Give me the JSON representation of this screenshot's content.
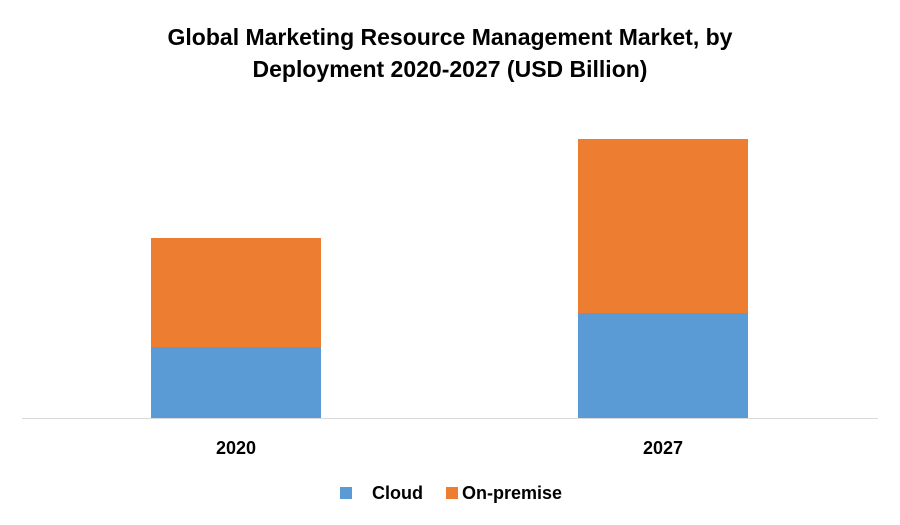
{
  "chart_data": {
    "type": "bar",
    "stacked": true,
    "title_lines": [
      "Global Marketing Resource Management Market, by",
      "Deployment 2020-2027 (USD Billion)"
    ],
    "categories": [
      "2020",
      "2027"
    ],
    "series": [
      {
        "name": "Cloud",
        "values": [
          7.1,
          10.5
        ],
        "color": "#5B9BD5"
      },
      {
        "name": "On-premise",
        "values": [
          10.9,
          17.4
        ],
        "color": "#ED7D31"
      }
    ],
    "ylim": [
      0,
      30
    ],
    "xlabel": "",
    "ylabel": "",
    "grid": false,
    "y_axis_shown": false,
    "legend_placement": "bottom"
  }
}
